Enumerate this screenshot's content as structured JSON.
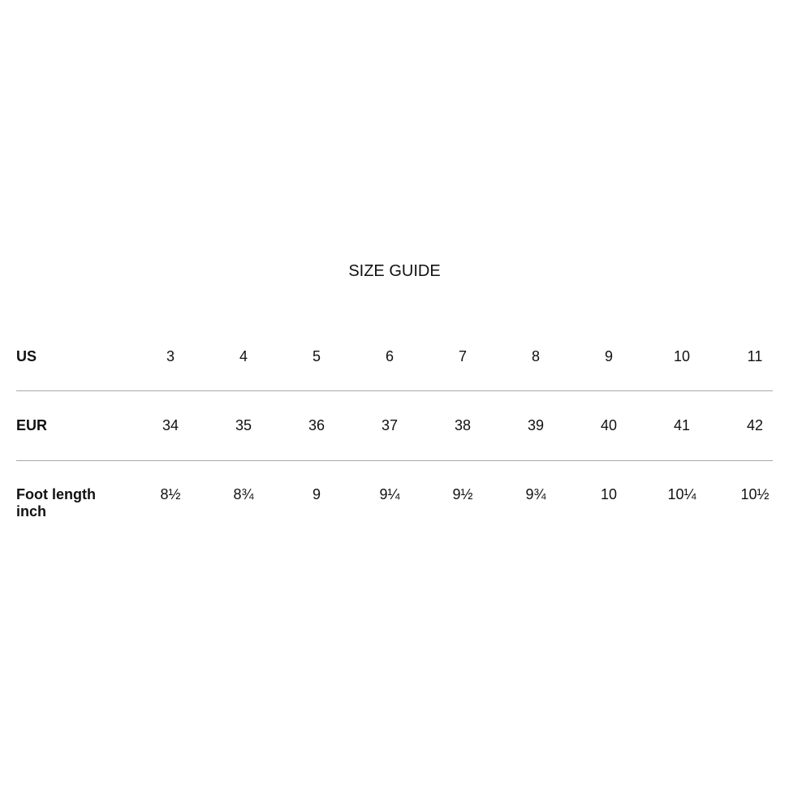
{
  "title": "SIZE GUIDE",
  "rows": [
    {
      "label": "US",
      "values": [
        "3",
        "4",
        "5",
        "6",
        "7",
        "8",
        "9",
        "10",
        "11"
      ]
    },
    {
      "label": "EUR",
      "values": [
        "34",
        "35",
        "36",
        "37",
        "38",
        "39",
        "40",
        "41",
        "42"
      ]
    },
    {
      "label": "Foot length",
      "label2": "inch",
      "values": [
        "8½",
        "8¾",
        "9",
        "9¼",
        "9½",
        "9¾",
        "10",
        "10¼",
        "10½"
      ]
    }
  ]
}
